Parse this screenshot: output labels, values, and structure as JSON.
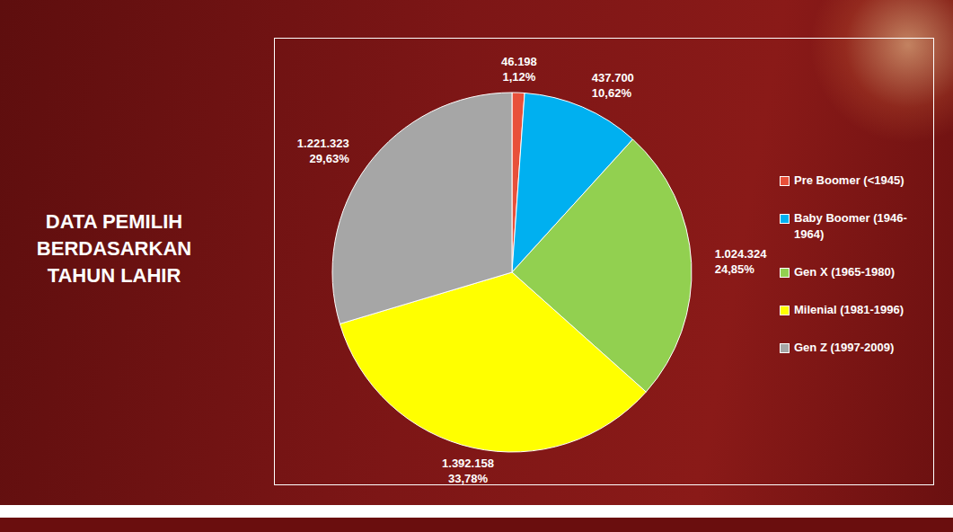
{
  "chart_data": {
    "type": "pie",
    "title": "DATA PEMILIH BERDASARKAN TAHUN LAHIR",
    "categories": [
      "Pre Boomer (<1945)",
      "Baby Boomer (1946-1964)",
      "Gen X (1965-1980)",
      "Milenial (1981-1996)",
      "Gen Z (1997-2009)"
    ],
    "values": [
      46198,
      437700,
      1024324,
      1392158,
      1221323
    ],
    "value_labels": [
      "46.198",
      "437.700",
      "1.024.324",
      "1.392.158",
      "1.221.323"
    ],
    "percentages": [
      1.12,
      10.62,
      24.85,
      33.78,
      29.63
    ],
    "percentage_labels": [
      "1,12%",
      "10,62%",
      "24,85%",
      "33,78%",
      "29,63%"
    ],
    "colors": [
      "#e8503a",
      "#00b0f0",
      "#92d050",
      "#ffff00",
      "#a6a6a6"
    ],
    "data_labels": true,
    "legend": "right"
  }
}
